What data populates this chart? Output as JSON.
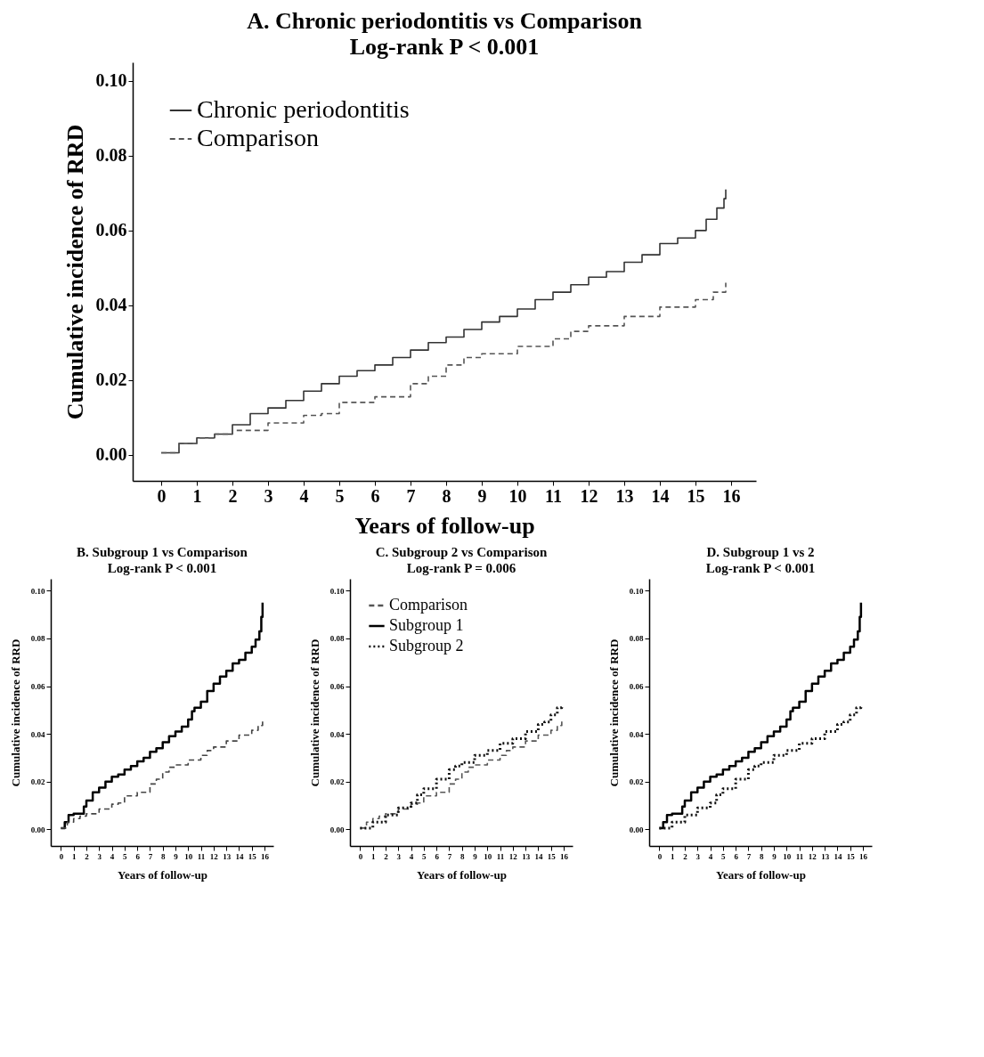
{
  "chart_data": [
    {
      "type": "step",
      "title": "A. Chronic periodontitis vs Comparison",
      "subtitle": "Log-rank P < 0.001",
      "xlabel": "Years of follow-up",
      "ylabel": "Cumulative incidence of RRD",
      "legend": "top left",
      "xlim": [
        -0.8,
        16.7
      ],
      "ylim": [
        -0.007,
        0.105
      ],
      "xticks": [
        0,
        1,
        2,
        3,
        4,
        5,
        6,
        7,
        8,
        9,
        10,
        11,
        12,
        13,
        14,
        15,
        16
      ],
      "yticks": [
        {
          "value": 0,
          "label": "0.00"
        },
        {
          "value": 0.02,
          "label": "0.02"
        },
        {
          "value": 0.04,
          "label": "0.04"
        },
        {
          "value": 0.06,
          "label": "0.06"
        },
        {
          "value": 0.08,
          "label": "0.08"
        },
        {
          "value": 0.1,
          "label": "0.10"
        }
      ],
      "series": [
        {
          "name": "Chronic periodontitis",
          "color": "#333333",
          "line_style": "solid",
          "x": [
            0,
            0.5,
            1,
            1.5,
            2,
            2.5,
            3,
            3.5,
            4,
            4.5,
            5,
            5.5,
            6,
            6.5,
            7,
            7.5,
            8,
            8.5,
            9,
            9.5,
            10,
            10.5,
            11,
            11.5,
            12,
            12.5,
            13,
            13.5,
            14,
            14.5,
            15,
            15.3,
            15.6,
            15.8,
            15.85
          ],
          "values": [
            0.0005,
            0.003,
            0.0045,
            0.0055,
            0.008,
            0.011,
            0.0125,
            0.0145,
            0.017,
            0.019,
            0.021,
            0.0225,
            0.024,
            0.026,
            0.028,
            0.03,
            0.0315,
            0.0335,
            0.0355,
            0.037,
            0.039,
            0.0415,
            0.0435,
            0.0455,
            0.0475,
            0.049,
            0.0515,
            0.0535,
            0.0565,
            0.058,
            0.06,
            0.063,
            0.066,
            0.0685,
            0.071
          ]
        },
        {
          "name": "Comparison",
          "color": "#555555",
          "line_style": "dashed",
          "x": [
            0,
            0.5,
            1,
            1.5,
            2,
            3,
            4,
            4.5,
            5,
            6,
            7,
            7.5,
            8,
            8.5,
            9,
            10,
            11,
            11.5,
            12,
            13,
            14,
            15,
            15.5,
            15.85
          ],
          "values": [
            0.0005,
            0.003,
            0.0045,
            0.0055,
            0.0065,
            0.0085,
            0.0105,
            0.011,
            0.014,
            0.0155,
            0.019,
            0.021,
            0.024,
            0.026,
            0.027,
            0.029,
            0.031,
            0.033,
            0.0345,
            0.037,
            0.0395,
            0.0415,
            0.0435,
            0.046
          ]
        }
      ]
    },
    {
      "type": "step",
      "title": "B. Subgroup 1 vs Comparison",
      "subtitle": "Log-rank P < 0.001",
      "xlabel": "Years of follow-up",
      "ylabel": "Cumulative incidence of RRD",
      "xlim": [
        -0.8,
        16.7
      ],
      "ylim": [
        -0.007,
        0.105
      ],
      "xticks": [
        0,
        1,
        2,
        3,
        4,
        5,
        6,
        7,
        8,
        9,
        10,
        11,
        12,
        13,
        14,
        15,
        16
      ],
      "yticks": [
        {
          "value": 0,
          "label": "0.00"
        },
        {
          "value": 0.02,
          "label": "0.02"
        },
        {
          "value": 0.04,
          "label": "0.04"
        },
        {
          "value": 0.06,
          "label": "0.06"
        },
        {
          "value": 0.08,
          "label": "0.08"
        },
        {
          "value": 0.1,
          "label": "0.10"
        }
      ],
      "series": [
        {
          "color": "#000000",
          "line_style": "solid",
          "x": [
            0,
            0.3,
            0.6,
            1,
            1.4,
            1.8,
            2,
            2.5,
            3,
            3.5,
            4,
            4.5,
            5,
            5.5,
            6,
            6.5,
            7,
            7.5,
            8,
            8.5,
            9,
            9.5,
            10,
            10.3,
            10.5,
            11,
            11.5,
            12,
            12.5,
            13,
            13.5,
            14,
            14.5,
            15,
            15.3,
            15.6,
            15.75,
            15.85
          ],
          "values": [
            0.0005,
            0.003,
            0.006,
            0.0065,
            0.0065,
            0.0095,
            0.012,
            0.0155,
            0.0175,
            0.02,
            0.022,
            0.023,
            0.025,
            0.0265,
            0.0285,
            0.03,
            0.0325,
            0.034,
            0.0365,
            0.039,
            0.041,
            0.043,
            0.046,
            0.0495,
            0.051,
            0.0535,
            0.058,
            0.061,
            0.064,
            0.0665,
            0.0695,
            0.071,
            0.074,
            0.0765,
            0.0795,
            0.083,
            0.089,
            0.095
          ]
        },
        {
          "color": "#444444",
          "line_style": "dashed",
          "x": [
            0,
            0.5,
            1,
            1.5,
            2,
            3,
            4,
            4.5,
            5,
            6,
            7,
            7.5,
            8,
            8.5,
            9,
            10,
            11,
            11.5,
            12,
            13,
            14,
            15,
            15.5,
            15.85
          ],
          "values": [
            0.0005,
            0.003,
            0.0045,
            0.0055,
            0.0065,
            0.0085,
            0.0105,
            0.011,
            0.014,
            0.0155,
            0.019,
            0.021,
            0.024,
            0.026,
            0.027,
            0.029,
            0.031,
            0.033,
            0.0345,
            0.037,
            0.0395,
            0.0415,
            0.0435,
            0.046
          ]
        }
      ]
    },
    {
      "type": "step",
      "title": "C. Subgroup 2 vs Comparison",
      "subtitle": "Log-rank P = 0.006",
      "xlabel": "Years of follow-up",
      "ylabel": "Cumulative incidence of RRD",
      "legend": "top left",
      "xlim": [
        -0.8,
        16.7
      ],
      "ylim": [
        -0.007,
        0.105
      ],
      "xticks": [
        0,
        1,
        2,
        3,
        4,
        5,
        6,
        7,
        8,
        9,
        10,
        11,
        12,
        13,
        14,
        15,
        16
      ],
      "yticks": [
        {
          "value": 0,
          "label": "0.00"
        },
        {
          "value": 0.02,
          "label": "0.02"
        },
        {
          "value": 0.04,
          "label": "0.04"
        },
        {
          "value": 0.06,
          "label": "0.06"
        },
        {
          "value": 0.08,
          "label": "0.08"
        },
        {
          "value": 0.1,
          "label": "0.10"
        }
      ],
      "series": [
        {
          "name": "Comparison",
          "color": "#555555",
          "line_style": "dashed",
          "x": [
            0,
            0.5,
            1,
            1.5,
            2,
            3,
            4,
            4.5,
            5,
            6,
            7,
            7.5,
            8,
            8.5,
            9,
            10,
            11,
            11.5,
            12,
            13,
            14,
            15,
            15.5,
            15.85
          ],
          "values": [
            0.0005,
            0.003,
            0.0045,
            0.0055,
            0.0065,
            0.0085,
            0.0105,
            0.011,
            0.014,
            0.0155,
            0.019,
            0.021,
            0.024,
            0.026,
            0.027,
            0.029,
            0.031,
            0.033,
            0.0345,
            0.037,
            0.0395,
            0.0415,
            0.0435,
            0.046
          ]
        },
        {
          "name": "Subgroup 1",
          "color": "#000000",
          "line_style": "solid"
        },
        {
          "name": "Subgroup 2",
          "color": "#111111",
          "line_style": "dotted",
          "x": [
            0,
            1,
            2,
            3,
            4,
            4.5,
            5,
            6,
            7,
            7.5,
            8,
            9,
            10,
            11,
            12,
            13,
            14,
            14.5,
            15,
            15.5,
            15.85
          ],
          "values": [
            0.0005,
            0.003,
            0.006,
            0.009,
            0.011,
            0.0145,
            0.017,
            0.021,
            0.025,
            0.0265,
            0.028,
            0.031,
            0.033,
            0.036,
            0.038,
            0.041,
            0.044,
            0.045,
            0.048,
            0.051,
            0.052
          ]
        }
      ]
    },
    {
      "type": "step",
      "title": "D. Subgroup 1 vs 2",
      "subtitle": "Log-rank P < 0.001",
      "xlabel": "Years of follow-up",
      "ylabel": "Cumulative incidence of RRD",
      "xlim": [
        -0.8,
        16.7
      ],
      "ylim": [
        -0.007,
        0.105
      ],
      "xticks": [
        0,
        1,
        2,
        3,
        4,
        5,
        6,
        7,
        8,
        9,
        10,
        11,
        12,
        13,
        14,
        15,
        16
      ],
      "yticks": [
        {
          "value": 0,
          "label": "0.00"
        },
        {
          "value": 0.02,
          "label": "0.02"
        },
        {
          "value": 0.04,
          "label": "0.04"
        },
        {
          "value": 0.06,
          "label": "0.06"
        },
        {
          "value": 0.08,
          "label": "0.08"
        },
        {
          "value": 0.1,
          "label": "0.10"
        }
      ],
      "series": [
        {
          "color": "#000000",
          "line_style": "solid",
          "x": [
            0,
            0.3,
            0.6,
            1,
            1.4,
            1.8,
            2,
            2.5,
            3,
            3.5,
            4,
            4.5,
            5,
            5.5,
            6,
            6.5,
            7,
            7.5,
            8,
            8.5,
            9,
            9.5,
            10,
            10.3,
            10.5,
            11,
            11.5,
            12,
            12.5,
            13,
            13.5,
            14,
            14.5,
            15,
            15.3,
            15.6,
            15.75,
            15.85
          ],
          "values": [
            0.0005,
            0.003,
            0.006,
            0.0065,
            0.0065,
            0.0095,
            0.012,
            0.0155,
            0.0175,
            0.02,
            0.022,
            0.023,
            0.025,
            0.0265,
            0.0285,
            0.03,
            0.0325,
            0.034,
            0.0365,
            0.039,
            0.041,
            0.043,
            0.046,
            0.0495,
            0.051,
            0.0535,
            0.058,
            0.061,
            0.064,
            0.0665,
            0.0695,
            0.071,
            0.074,
            0.0765,
            0.0795,
            0.083,
            0.089,
            0.095
          ]
        },
        {
          "color": "#111111",
          "line_style": "dotted",
          "x": [
            0,
            1,
            2,
            3,
            4,
            4.5,
            5,
            6,
            7,
            7.5,
            8,
            9,
            10,
            11,
            12,
            13,
            14,
            14.5,
            15,
            15.5,
            15.85
          ],
          "values": [
            0.0005,
            0.003,
            0.006,
            0.009,
            0.011,
            0.0145,
            0.017,
            0.021,
            0.025,
            0.0265,
            0.028,
            0.031,
            0.033,
            0.036,
            0.038,
            0.041,
            0.044,
            0.045,
            0.048,
            0.051,
            0.052
          ]
        }
      ]
    }
  ]
}
